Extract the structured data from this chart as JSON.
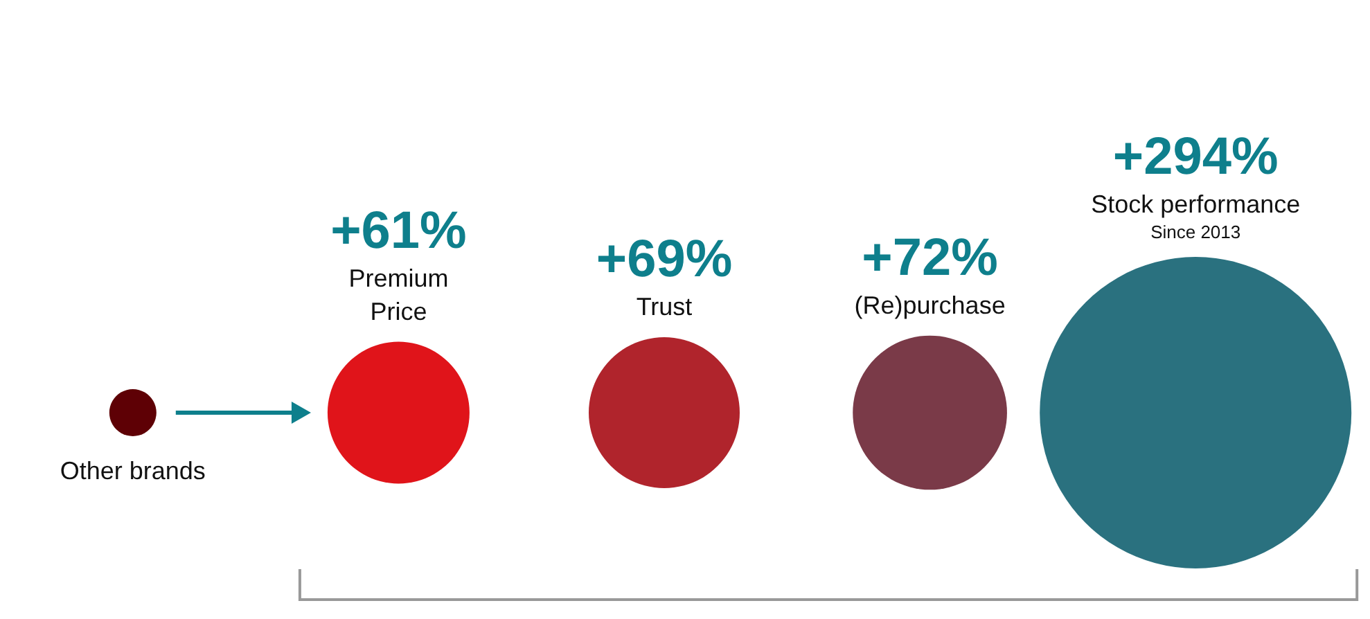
{
  "chart_data": {
    "type": "other",
    "categories": [
      "Other brands",
      "Premium\nPrice",
      "Trust",
      "(Re)purchase",
      "Stock performance"
    ],
    "values": [
      null,
      61,
      69,
      72,
      294
    ],
    "value_labels": [
      null,
      "+61%",
      "+69%",
      "+72%",
      "+294%"
    ],
    "colors": [
      "#5e0005",
      "#e0141a",
      "#b0242c",
      "#7a3a48",
      "#2a717f"
    ],
    "annotations": [
      {
        "text": "Since 2013",
        "x": "Stock performance"
      }
    ]
  }
}
